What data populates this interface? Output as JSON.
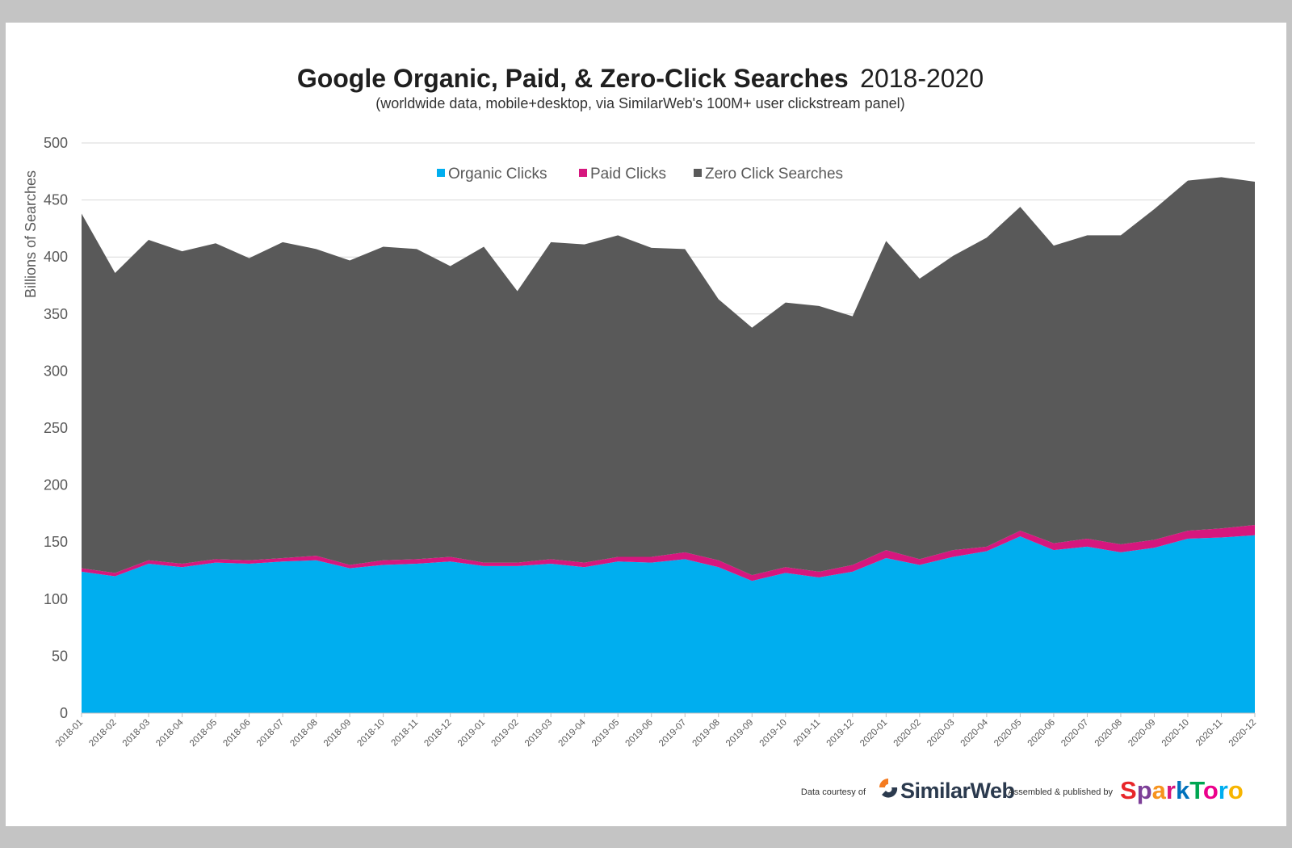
{
  "chart_data": {
    "type": "area",
    "stacked": true,
    "title": "Google Organic, Paid, & Zero-Click Searches",
    "title_suffix": "2018-2020",
    "subtitle": "(worldwide data, mobile+desktop, via SimilarWeb's 100M+ user clickstream panel)",
    "ylabel": "Billions of Searches",
    "xlabel": "",
    "ylim": [
      0,
      500
    ],
    "yticks": [
      0,
      50,
      100,
      150,
      200,
      250,
      300,
      350,
      400,
      450,
      500
    ],
    "grid": true,
    "legend_position": "top-center",
    "x": [
      "2018-01",
      "2018-02",
      "2018-03",
      "2018-04",
      "2018-05",
      "2018-06",
      "2018-07",
      "2018-08",
      "2018-09",
      "2018-10",
      "2018-11",
      "2018-12",
      "2019-01",
      "2019-02",
      "2019-03",
      "2019-04",
      "2019-05",
      "2019-06",
      "2019-07",
      "2019-08",
      "2019-09",
      "2019-10",
      "2019-11",
      "2019-12",
      "2020-01",
      "2020-02",
      "2020-03",
      "2020-04",
      "2020-05",
      "2020-06",
      "2020-07",
      "2020-08",
      "2020-09",
      "2020-10",
      "2020-11",
      "2020-12"
    ],
    "series": [
      {
        "name": "Organic Clicks",
        "color": "#00aeef",
        "values": [
          124,
          120,
          131,
          128,
          132,
          131,
          133,
          134,
          127,
          130,
          131,
          133,
          129,
          129,
          131,
          128,
          133,
          132,
          135,
          128,
          116,
          123,
          119,
          124,
          136,
          130,
          137,
          142,
          155,
          143,
          146,
          141,
          145,
          153,
          154,
          156
        ]
      },
      {
        "name": "Paid Clicks",
        "color": "#d6177e",
        "values": [
          3,
          3,
          3,
          3,
          3,
          3,
          3,
          4,
          3,
          4,
          4,
          4,
          3,
          3,
          4,
          4,
          4,
          5,
          6,
          6,
          5,
          5,
          5,
          6,
          7,
          5,
          6,
          4,
          5,
          6,
          7,
          7,
          7,
          7,
          8,
          9
        ]
      },
      {
        "name": "Zero Click Searches",
        "color": "#595959",
        "values": [
          311,
          263,
          281,
          274,
          277,
          265,
          277,
          269,
          267,
          275,
          272,
          255,
          277,
          238,
          278,
          279,
          282,
          271,
          266,
          229,
          217,
          232,
          233,
          218,
          271,
          246,
          258,
          271,
          284,
          261,
          266,
          271,
          290,
          307,
          308,
          301
        ]
      }
    ]
  },
  "credits": {
    "data_courtesy": "Data courtesy of",
    "similarweb": "SimilarWeb",
    "assembled": "Assembled & published by",
    "sparktoro_letters": [
      "S",
      "p",
      "a",
      "r",
      "k",
      "T",
      "o",
      "r",
      "o"
    ],
    "sparktoro_colors": [
      "#e8262a",
      "#7d3f98",
      "#f7931e",
      "#d6177e",
      "#0072bc",
      "#00a651",
      "#ec008c",
      "#00aeef",
      "#f7b500"
    ],
    "similarweb_icon_colors": [
      "#f47b20",
      "#2b3a4e"
    ]
  }
}
